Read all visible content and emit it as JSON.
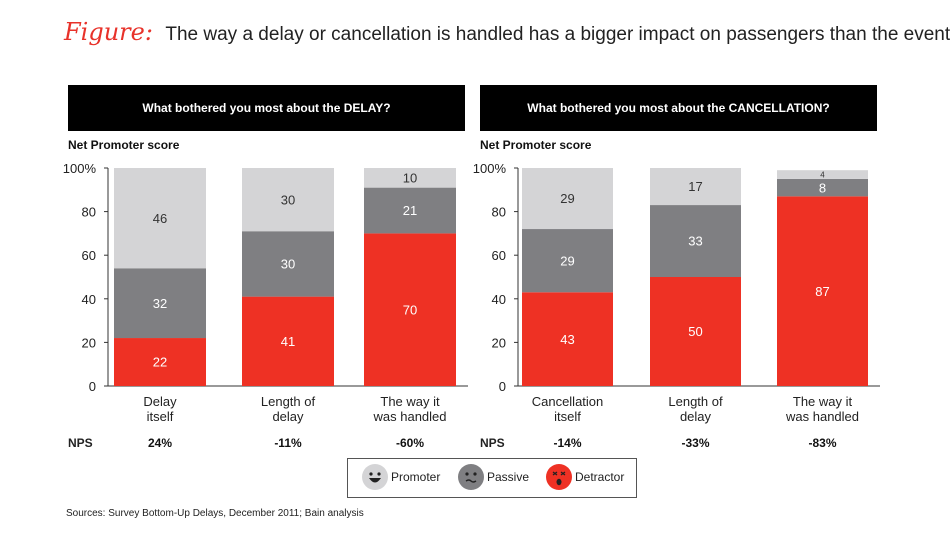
{
  "figure": {
    "label": "Figure:",
    "title": "The way a delay or cancellation is handled has a bigger impact on passengers than the event itself"
  },
  "panels": [
    {
      "header": "What bothered you most about the DELAY?",
      "axis_title": "Net Promoter score",
      "nps_label": "NPS"
    },
    {
      "header": "What bothered you most about the CANCELLATION?",
      "axis_title": "Net Promoter score",
      "nps_label": "NPS"
    }
  ],
  "legend": {
    "promoter": "Promoter",
    "passive": "Passive",
    "detractor": "Detractor"
  },
  "sources": "Sources: Survey Bottom-Up Delays, December 2011; Bain analysis",
  "colors": {
    "promoter": "#d4d4d6",
    "passive": "#7f7f82",
    "detractor": "#ee3124",
    "header_bg": "#000000",
    "title_accent": "#e8322a"
  },
  "chart_data": [
    {
      "type": "bar",
      "stacked": true,
      "title": "What bothered you most about the DELAY?",
      "ylabel": "Net Promoter score",
      "ylim": [
        0,
        100
      ],
      "yticks": [
        "0",
        "20",
        "40",
        "60",
        "80",
        "100%"
      ],
      "categories": [
        [
          "Delay",
          "itself"
        ],
        [
          "Length of",
          "delay"
        ],
        [
          "The way it",
          "was handled"
        ]
      ],
      "series": [
        {
          "name": "Detractor",
          "values": [
            22,
            41,
            70
          ]
        },
        {
          "name": "Passive",
          "values": [
            32,
            30,
            21
          ]
        },
        {
          "name": "Promoter",
          "values": [
            46,
            30,
            10
          ]
        }
      ],
      "nps": [
        "24%",
        "-11%",
        "-60%"
      ]
    },
    {
      "type": "bar",
      "stacked": true,
      "title": "What bothered you most about the CANCELLATION?",
      "ylabel": "Net Promoter score",
      "ylim": [
        0,
        100
      ],
      "yticks": [
        "0",
        "20",
        "40",
        "60",
        "80",
        "100%"
      ],
      "categories": [
        [
          "Cancellation",
          "itself"
        ],
        [
          "Length of",
          "delay"
        ],
        [
          "The way it",
          "was handled"
        ]
      ],
      "series": [
        {
          "name": "Detractor",
          "values": [
            43,
            50,
            87
          ]
        },
        {
          "name": "Passive",
          "values": [
            29,
            33,
            8
          ]
        },
        {
          "name": "Promoter",
          "values": [
            29,
            17,
            4
          ]
        }
      ],
      "nps": [
        "-14%",
        "-33%",
        "-83%"
      ]
    }
  ]
}
